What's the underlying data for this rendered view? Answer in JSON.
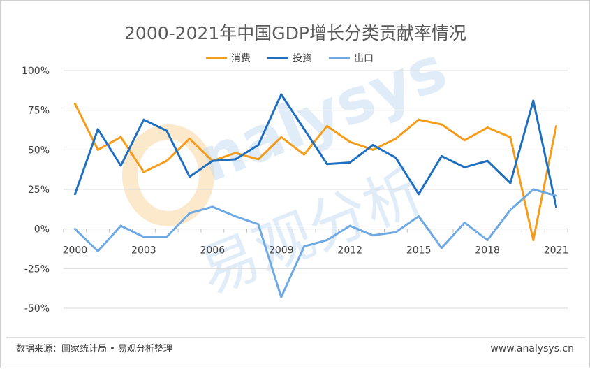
{
  "chart_data": {
    "type": "line",
    "title": "2000-2021年中国GDP增长分类贡献率情况",
    "x": [
      2000,
      2001,
      2002,
      2003,
      2004,
      2005,
      2006,
      2007,
      2008,
      2009,
      2010,
      2011,
      2012,
      2013,
      2014,
      2015,
      2016,
      2017,
      2018,
      2019,
      2020,
      2021
    ],
    "xtick_labels": [
      "2000",
      "2003",
      "2006",
      "2009",
      "2012",
      "2015",
      "2018",
      "2021"
    ],
    "xtick_values": [
      2000,
      2003,
      2006,
      2009,
      2012,
      2015,
      2018,
      2021
    ],
    "ytick_labels": [
      "100%",
      "75%",
      "50%",
      "25%",
      "0%",
      "-25%",
      "-50%"
    ],
    "ytick_values": [
      100,
      75,
      50,
      25,
      0,
      -25,
      -50
    ],
    "ylim": [
      -50,
      100
    ],
    "grid": true,
    "legend_position": "top",
    "series": [
      {
        "name": "消费",
        "color": "#f59c1a",
        "values": [
          79,
          50,
          58,
          36,
          43,
          57,
          43,
          48,
          44,
          58,
          47,
          65,
          55,
          50,
          57,
          69,
          66,
          56,
          64,
          58,
          -7,
          65
        ]
      },
      {
        "name": "投资",
        "color": "#1f6fc0",
        "values": [
          22,
          63,
          40,
          69,
          62,
          33,
          43,
          44,
          53,
          85,
          63,
          41,
          42,
          53,
          45,
          22,
          46,
          39,
          43,
          29,
          81,
          14
        ]
      },
      {
        "name": "出口",
        "color": "#6fa9e3",
        "values": [
          0,
          -14,
          2,
          -5,
          -5,
          10,
          14,
          8,
          3,
          -43,
          -11,
          -7,
          2,
          -4,
          -2,
          8,
          -12,
          4,
          -7,
          12,
          25,
          21
        ]
      }
    ]
  },
  "footer": {
    "source": "数据来源：国家统计局 • 易观分析整理",
    "url": "www.analysys.cn"
  },
  "watermark": {
    "latin": "nalysys",
    "chinese": "易观分析"
  }
}
